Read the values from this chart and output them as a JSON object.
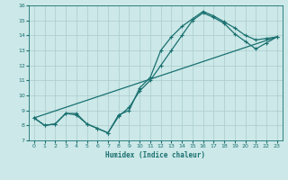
{
  "xlabel": "Humidex (Indice chaleur)",
  "xlim": [
    -0.5,
    23.5
  ],
  "ylim": [
    7,
    16
  ],
  "yticks": [
    7,
    8,
    9,
    10,
    11,
    12,
    13,
    14,
    15,
    16
  ],
  "xticks": [
    0,
    1,
    2,
    3,
    4,
    5,
    6,
    7,
    8,
    9,
    10,
    11,
    12,
    13,
    14,
    15,
    16,
    17,
    18,
    19,
    20,
    21,
    22,
    23
  ],
  "bg_color": "#cce8e8",
  "grid_color": "#aacccc",
  "line_color": "#1a7070",
  "line1_x": [
    0,
    1,
    2,
    3,
    4,
    5,
    6,
    7,
    8,
    9,
    10,
    11,
    12,
    13,
    14,
    15,
    16,
    17,
    18,
    19,
    20,
    21,
    22,
    23
  ],
  "line1_y": [
    8.5,
    8.0,
    8.1,
    8.8,
    8.8,
    8.1,
    7.8,
    7.5,
    8.7,
    9.0,
    10.5,
    11.2,
    13.0,
    13.9,
    14.6,
    15.1,
    15.6,
    15.3,
    14.9,
    14.5,
    14.0,
    13.7,
    13.8,
    13.9
  ],
  "line2_x": [
    0,
    1,
    2,
    3,
    4,
    5,
    6,
    7,
    8,
    9,
    10,
    11,
    12,
    13,
    14,
    15,
    16,
    17,
    18,
    19,
    20,
    21,
    22,
    23
  ],
  "line2_y": [
    8.5,
    8.0,
    8.1,
    8.8,
    8.7,
    8.1,
    7.8,
    7.5,
    8.6,
    9.2,
    10.3,
    11.0,
    12.0,
    13.0,
    14.0,
    15.0,
    15.5,
    15.2,
    14.8,
    14.1,
    13.6,
    13.1,
    13.5,
    13.9
  ],
  "line3_x": [
    0,
    23
  ],
  "line3_y": [
    8.5,
    13.9
  ]
}
